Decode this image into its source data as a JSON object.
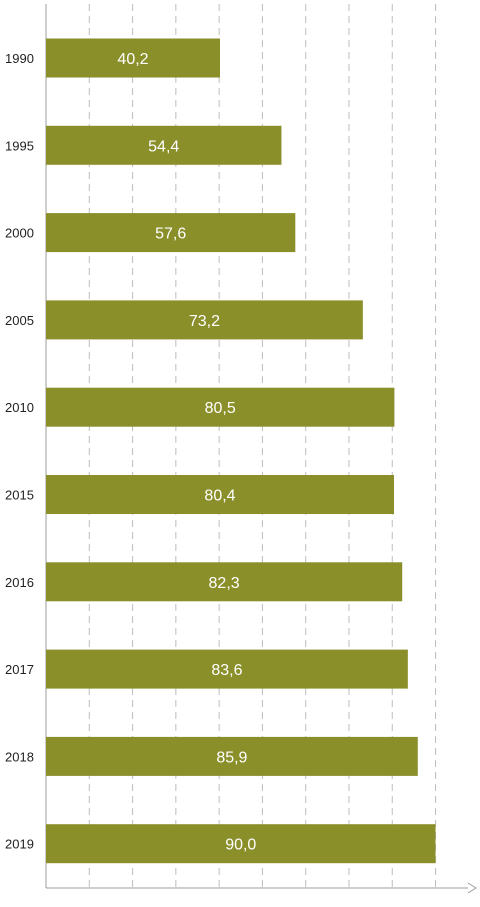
{
  "chart_data": {
    "type": "bar",
    "orientation": "horizontal",
    "categories": [
      "1990",
      "1995",
      "2000",
      "2005",
      "2010",
      "2015",
      "2016",
      "2017",
      "2018",
      "2019"
    ],
    "values": [
      40.2,
      54.4,
      57.6,
      73.2,
      80.5,
      80.4,
      82.3,
      83.6,
      85.9,
      90.0
    ],
    "value_labels": [
      "40,2",
      "54,4",
      "57,6",
      "73,2",
      "80,5",
      "80,4",
      "82,3",
      "83,6",
      "85,9",
      "90,0"
    ],
    "xlim": [
      0,
      97.5
    ],
    "gridline_step": 10,
    "grid": true,
    "grid_style": "dashed vertical",
    "bar_color": "#8a8f2a",
    "title": "",
    "xlabel": "",
    "ylabel": ""
  }
}
